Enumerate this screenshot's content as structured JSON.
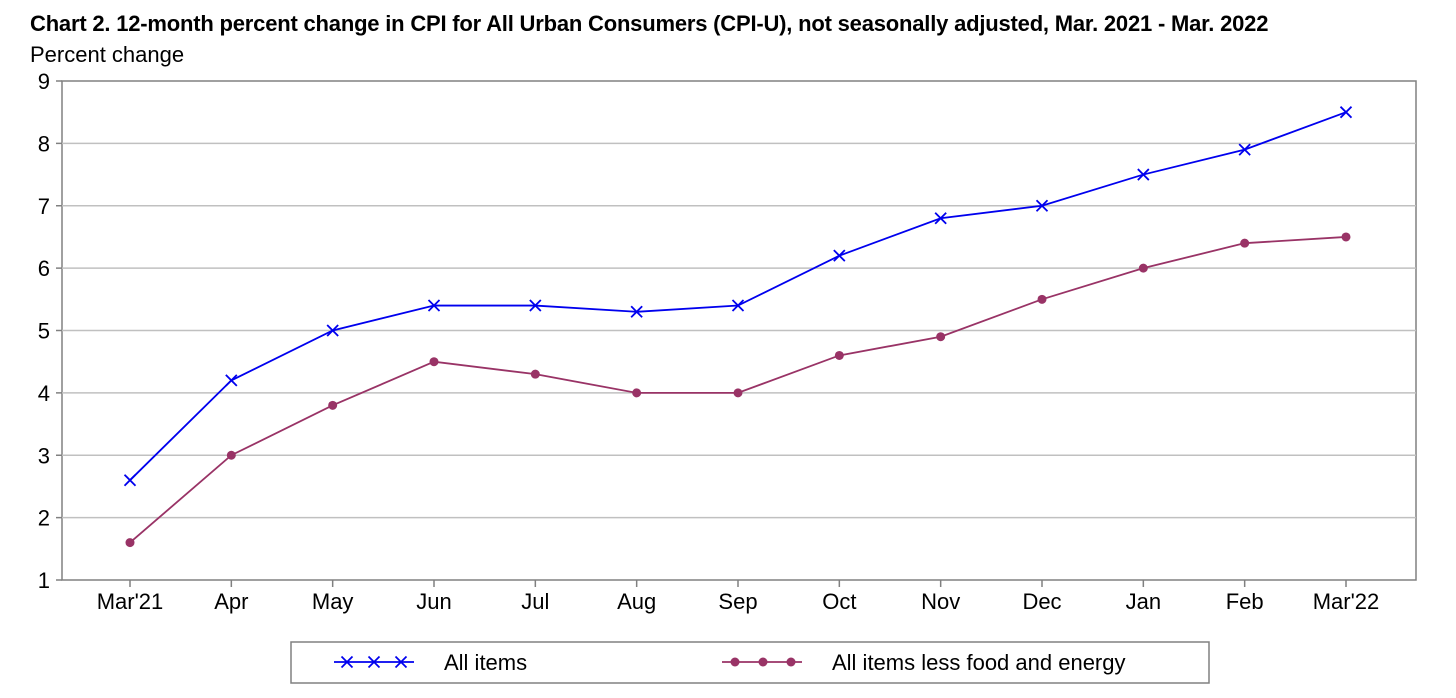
{
  "chart_data": {
    "type": "line",
    "title": "Chart 2. 12-month percent change in CPI for All Urban Consumers (CPI-U), not seasonally adjusted, Mar. 2021 - Mar. 2022",
    "ylabel": "Percent change",
    "xlabel": "",
    "categories": [
      "Mar'21",
      "Apr",
      "May",
      "Jun",
      "Jul",
      "Aug",
      "Sep",
      "Oct",
      "Nov",
      "Dec",
      "Jan",
      "Feb",
      "Mar'22"
    ],
    "ylim": [
      1,
      9
    ],
    "yticks": [
      1,
      2,
      3,
      4,
      5,
      6,
      7,
      8,
      9
    ],
    "grid": true,
    "legend_position": "bottom",
    "series": [
      {
        "name": "All items",
        "color": "#0000ee",
        "marker": "x",
        "values": [
          2.6,
          4.2,
          5.0,
          5.4,
          5.4,
          5.3,
          5.4,
          6.2,
          6.8,
          7.0,
          7.5,
          7.9,
          8.5
        ]
      },
      {
        "name": "All items less food and energy",
        "color": "#993366",
        "marker": "circle",
        "values": [
          1.6,
          3.0,
          3.8,
          4.5,
          4.3,
          4.0,
          4.0,
          4.6,
          4.9,
          5.5,
          6.0,
          6.4,
          6.5
        ]
      }
    ]
  }
}
